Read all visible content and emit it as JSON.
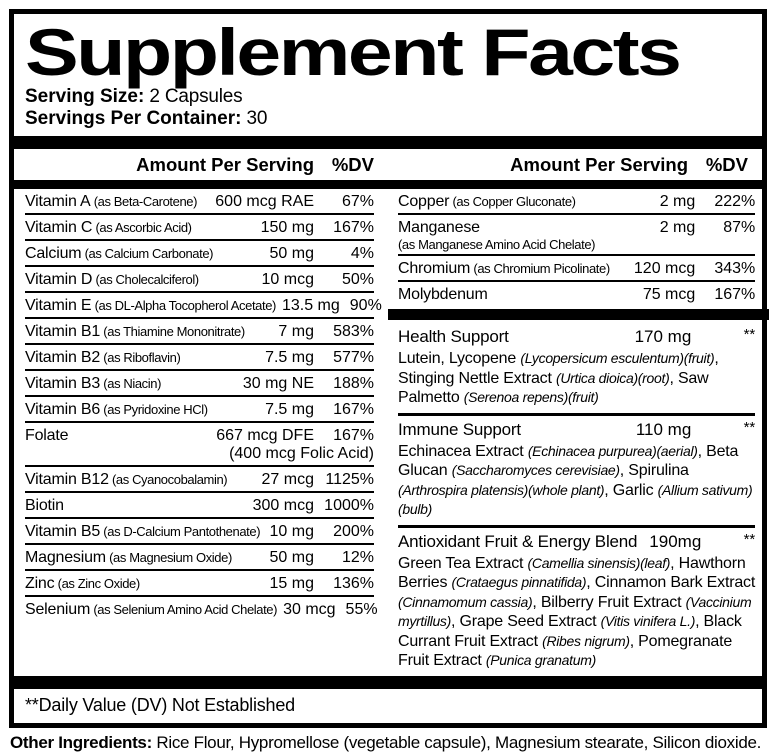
{
  "title": "Supplement Facts",
  "serving": {
    "size_label": "Serving Size:",
    "size_value": " 2 Capsules",
    "container_label": "Servings Per Container:",
    "container_value": " 30"
  },
  "table_header": {
    "amount": "Amount Per Serving",
    "dv": "%DV"
  },
  "left_rows": [
    {
      "name": "Vitamin A",
      "detail": "(as Beta-Carotene)",
      "amount": "600 mcg RAE",
      "dv": "67%"
    },
    {
      "name": "Vitamin C",
      "detail": "(as Ascorbic Acid)",
      "amount": "150 mg",
      "dv": "167%"
    },
    {
      "name": "Calcium",
      "detail": "(as Calcium Carbonate)",
      "amount": "50 mg",
      "dv": "4%"
    },
    {
      "name": "Vitamin D",
      "detail": "(as Cholecalciferol)",
      "amount": "10 mcg",
      "dv": "50%"
    },
    {
      "name": "Vitamin E",
      "detail": "(as DL-Alpha Tocopherol Acetate)",
      "amount": "13.5 mg",
      "dv": "90%"
    },
    {
      "name": "Vitamin B1",
      "detail": "(as Thiamine Mononitrate)",
      "amount": "7 mg",
      "dv": "583%"
    },
    {
      "name": "Vitamin B2",
      "detail": "(as Riboflavin)",
      "amount": "7.5 mg",
      "dv": "577%"
    },
    {
      "name": "Vitamin B3",
      "detail": "(as Niacin)",
      "amount": "30 mg NE",
      "dv": "188%"
    },
    {
      "name": "Vitamin B6",
      "detail": "(as Pyridoxine HCl)",
      "amount": "7.5 mg",
      "dv": "167%"
    },
    {
      "name": "Folate",
      "detail": "",
      "amount": "667 mcg DFE",
      "dv": "167%",
      "note": "(400 mcg Folic Acid)"
    },
    {
      "name": "Vitamin B12",
      "detail": "(as Cyanocobalamin)",
      "amount": "27 mcg",
      "dv": "1125%"
    },
    {
      "name": "Biotin",
      "detail": "",
      "amount": "300 mcg",
      "dv": "1000%"
    },
    {
      "name": "Vitamin B5",
      "detail": "(as D-Calcium Pantothenate)",
      "amount": "10 mg",
      "dv": "200%"
    },
    {
      "name": "Magnesium",
      "detail": "(as Magnesium Oxide)",
      "amount": "50 mg",
      "dv": "12%"
    },
    {
      "name": "Zinc",
      "detail": "(as Zinc Oxide)",
      "amount": "15 mg",
      "dv": "136%"
    },
    {
      "name": "Selenium",
      "detail": "(as Selenium Amino Acid Chelate)",
      "amount": "30 mcg",
      "dv": "55%"
    }
  ],
  "right_rows": [
    {
      "name": "Copper",
      "detail": "(as Copper Gluconate)",
      "amount": "2 mg",
      "dv": "222%"
    },
    {
      "name": "Manganese",
      "detail": "",
      "sub": "(as Manganese Amino Acid Chelate)",
      "amount": "2 mg",
      "dv": "87%"
    },
    {
      "name": "Chromium",
      "detail": "(as Chromium Picolinate)",
      "amount": "120 mcg",
      "dv": "343%"
    },
    {
      "name": "Molybdenum",
      "detail": "",
      "amount": "75 mcg",
      "dv": "167%"
    }
  ],
  "right_sections": [
    {
      "name": "Health Support",
      "amount": "170 mg",
      "dv": "**",
      "inline_amount": false,
      "desc": [
        [
          "Lutein, Lycopene ",
          false
        ],
        [
          "(Lycopersicum esculentum)(fruit)",
          true
        ],
        [
          ", Stinging Nettle Extract ",
          false
        ],
        [
          "(Urtica dioica)(root)",
          true
        ],
        [
          ", Saw Palmetto ",
          false
        ],
        [
          "(Serenoa repens)(fruit)",
          true
        ]
      ]
    },
    {
      "name": "Immune Support",
      "amount": "110 mg",
      "dv": "**",
      "inline_amount": false,
      "desc": [
        [
          "Echinacea Extract ",
          false
        ],
        [
          "(Echinacea purpurea)(aerial)",
          true
        ],
        [
          ", Beta Glucan ",
          false
        ],
        [
          "(Saccharomyces cerevisiae)",
          true
        ],
        [
          ", Spirulina ",
          false
        ],
        [
          "(Arthrospira platensis)(whole plant)",
          true
        ],
        [
          ", Garlic ",
          false
        ],
        [
          "(Allium sativum)(bulb)",
          true
        ]
      ]
    },
    {
      "name": "Antioxidant Fruit & Energy Blend",
      "amount": "190mg",
      "dv": "**",
      "inline_amount": true,
      "desc": [
        [
          "Green Tea Extract ",
          false
        ],
        [
          "(Camellia sinensis)(leaf)",
          true
        ],
        [
          ", Hawthorn Berries ",
          false
        ],
        [
          "(Crataegus pinnatifida)",
          true
        ],
        [
          ", Cinnamon Bark Extract ",
          false
        ],
        [
          "(Cinnamomum cassia)",
          true
        ],
        [
          ", Bilberry Fruit Extract ",
          false
        ],
        [
          "(Vaccinium myrtillus)",
          true
        ],
        [
          ", Grape Seed Extract ",
          false
        ],
        [
          "(Vitis vinifera L.)",
          true
        ],
        [
          ", Black Currant Fruit Extract ",
          false
        ],
        [
          "(Ribes nigrum)",
          true
        ],
        [
          ", Pomegranate Fruit Extract ",
          false
        ],
        [
          "(Punica granatum)",
          true
        ]
      ]
    }
  ],
  "footnote": "**Daily Value (DV) Not Established",
  "other_ingredients": {
    "label": "Other Ingredients:",
    "text": " Rice Flour, Hypromellose (vegetable capsule), Magnesium stearate, Silicon dioxide."
  }
}
